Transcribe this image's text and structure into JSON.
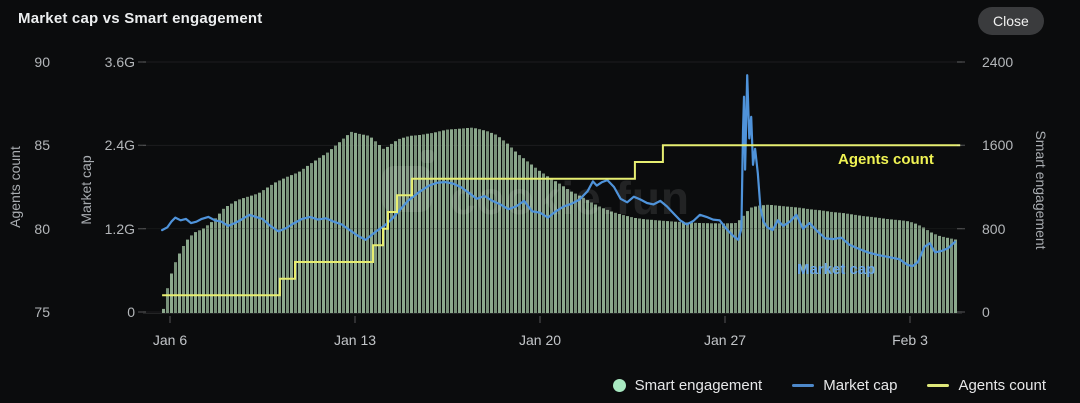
{
  "header": {
    "title": "Market cap vs Smart engagement",
    "close_label": "Close"
  },
  "watermark": {
    "text": "cookie.fun"
  },
  "annotations": {
    "agents": {
      "text": "Agents count",
      "color": "#f0f353"
    },
    "market_cap": {
      "text": "Market cap",
      "color": "#69a6e5"
    }
  },
  "legend": {
    "items": [
      {
        "label": "Smart engagement",
        "marker": "dot",
        "color": "#a8e9c1"
      },
      {
        "label": "Market cap",
        "marker": "line",
        "color": "#4d88c9"
      },
      {
        "label": "Agents count",
        "marker": "line",
        "color": "#dfe87a"
      }
    ]
  },
  "axes": {
    "left_agents": {
      "title": "Agents count",
      "ticks": [
        "90",
        "85",
        "80",
        "75"
      ],
      "range": [
        75,
        90
      ]
    },
    "left_market_cap": {
      "title": "Market cap",
      "ticks": [
        "3.6G",
        "2.4G",
        "1.2G",
        "0"
      ],
      "range_G": [
        0,
        3.6
      ]
    },
    "right_smart_engagement": {
      "title": "Smart engagement",
      "ticks": [
        "2400",
        "1600",
        "800",
        "0"
      ],
      "range": [
        0,
        2400
      ]
    },
    "x": {
      "tick_labels": [
        "Jan 6",
        "Jan 13",
        "Jan 20",
        "Jan 27",
        "Feb 3"
      ],
      "tick_values": [
        6,
        13,
        20,
        27,
        34
      ]
    }
  },
  "chart_data": {
    "type": "combo",
    "title": "Market cap vs Smart engagement",
    "x_unit": "day (Jan 6 = 6, Feb 3 = 34)",
    "x_range": [
      5.7,
      35.9
    ],
    "grid": "horizontal",
    "legend_position": "bottom-right",
    "series": [
      {
        "name": "Smart engagement",
        "type": "area-bars",
        "axis": "smart_engagement",
        "color": "#8ca98d",
        "axis_range": [
          0,
          2400
        ],
        "points": [
          [
            5.7,
            30
          ],
          [
            5.8,
            180
          ],
          [
            5.95,
            330
          ],
          [
            6.1,
            450
          ],
          [
            6.3,
            560
          ],
          [
            6.55,
            680
          ],
          [
            6.85,
            760
          ],
          [
            7.2,
            800
          ],
          [
            7.6,
            880
          ],
          [
            8.0,
            1000
          ],
          [
            8.5,
            1075
          ],
          [
            9.3,
            1140
          ],
          [
            9.9,
            1240
          ],
          [
            10.4,
            1300
          ],
          [
            10.8,
            1340
          ],
          [
            11.3,
            1430
          ],
          [
            11.9,
            1530
          ],
          [
            12.4,
            1640
          ],
          [
            12.8,
            1730
          ],
          [
            13.1,
            1710
          ],
          [
            13.5,
            1690
          ],
          [
            13.8,
            1620
          ],
          [
            14.05,
            1560
          ],
          [
            14.3,
            1610
          ],
          [
            14.6,
            1660
          ],
          [
            15.0,
            1690
          ],
          [
            15.4,
            1700
          ],
          [
            15.9,
            1720
          ],
          [
            16.4,
            1750
          ],
          [
            16.9,
            1760
          ],
          [
            17.4,
            1770
          ],
          [
            17.9,
            1740
          ],
          [
            18.3,
            1700
          ],
          [
            18.7,
            1620
          ],
          [
            19.1,
            1520
          ],
          [
            19.5,
            1440
          ],
          [
            19.9,
            1360
          ],
          [
            20.3,
            1290
          ],
          [
            20.7,
            1230
          ],
          [
            21.1,
            1160
          ],
          [
            21.5,
            1110
          ],
          [
            21.9,
            1050
          ],
          [
            22.3,
            1000
          ],
          [
            22.7,
            960
          ],
          [
            23.1,
            930
          ],
          [
            23.5,
            905
          ],
          [
            23.9,
            890
          ],
          [
            24.4,
            880
          ],
          [
            24.9,
            870
          ],
          [
            25.4,
            862
          ],
          [
            25.9,
            855
          ],
          [
            26.4,
            852
          ],
          [
            26.9,
            850
          ],
          [
            27.4,
            855
          ],
          [
            27.7,
            940
          ],
          [
            27.9,
            1000
          ],
          [
            28.2,
            1020
          ],
          [
            28.6,
            1030
          ],
          [
            29.0,
            1020
          ],
          [
            29.4,
            1010
          ],
          [
            29.8,
            1000
          ],
          [
            30.2,
            985
          ],
          [
            30.6,
            975
          ],
          [
            31.0,
            960
          ],
          [
            31.4,
            950
          ],
          [
            31.8,
            935
          ],
          [
            32.2,
            920
          ],
          [
            32.6,
            910
          ],
          [
            33.0,
            895
          ],
          [
            33.4,
            885
          ],
          [
            33.8,
            875
          ],
          [
            34.1,
            855
          ],
          [
            34.4,
            820
          ],
          [
            34.7,
            770
          ],
          [
            35.0,
            735
          ],
          [
            35.3,
            715
          ],
          [
            35.6,
            700
          ],
          [
            35.78,
            690
          ]
        ]
      },
      {
        "name": "Market cap",
        "type": "line",
        "axis": "market_cap_G",
        "color": "#4f93da",
        "axis_range_G": [
          0,
          3.6
        ],
        "points": [
          [
            5.7,
            1.18
          ],
          [
            5.9,
            1.22
          ],
          [
            6.05,
            1.3
          ],
          [
            6.2,
            1.36
          ],
          [
            6.4,
            1.32
          ],
          [
            6.6,
            1.34
          ],
          [
            6.8,
            1.28
          ],
          [
            7.0,
            1.3
          ],
          [
            7.2,
            1.34
          ],
          [
            7.45,
            1.37
          ],
          [
            7.7,
            1.32
          ],
          [
            7.95,
            1.3
          ],
          [
            8.2,
            1.24
          ],
          [
            8.45,
            1.28
          ],
          [
            8.7,
            1.33
          ],
          [
            9.0,
            1.4
          ],
          [
            9.25,
            1.37
          ],
          [
            9.5,
            1.34
          ],
          [
            9.8,
            1.24
          ],
          [
            10.1,
            1.16
          ],
          [
            10.4,
            1.21
          ],
          [
            10.7,
            1.28
          ],
          [
            11.0,
            1.34
          ],
          [
            11.3,
            1.37
          ],
          [
            11.6,
            1.33
          ],
          [
            11.9,
            1.35
          ],
          [
            12.2,
            1.3
          ],
          [
            12.5,
            1.26
          ],
          [
            12.8,
            1.18
          ],
          [
            13.1,
            1.1
          ],
          [
            13.4,
            1.04
          ],
          [
            13.6,
            1.1
          ],
          [
            13.8,
            1.16
          ],
          [
            14.1,
            1.24
          ],
          [
            14.4,
            1.34
          ],
          [
            14.7,
            1.47
          ],
          [
            15.0,
            1.6
          ],
          [
            15.4,
            1.72
          ],
          [
            15.8,
            1.82
          ],
          [
            16.1,
            1.86
          ],
          [
            16.4,
            1.87
          ],
          [
            16.7,
            1.85
          ],
          [
            17.0,
            1.8
          ],
          [
            17.3,
            1.72
          ],
          [
            17.6,
            1.63
          ],
          [
            17.9,
            1.67
          ],
          [
            18.2,
            1.6
          ],
          [
            18.5,
            1.55
          ],
          [
            18.8,
            1.48
          ],
          [
            19.1,
            1.52
          ],
          [
            19.4,
            1.6
          ],
          [
            19.7,
            1.45
          ],
          [
            20.0,
            1.43
          ],
          [
            20.3,
            1.36
          ],
          [
            20.6,
            1.45
          ],
          [
            20.9,
            1.52
          ],
          [
            21.2,
            1.56
          ],
          [
            21.5,
            1.62
          ],
          [
            21.8,
            1.74
          ],
          [
            22.0,
            1.88
          ],
          [
            22.15,
            1.82
          ],
          [
            22.35,
            1.87
          ],
          [
            22.55,
            1.9
          ],
          [
            22.8,
            1.8
          ],
          [
            23.05,
            1.63
          ],
          [
            23.3,
            1.58
          ],
          [
            23.55,
            1.66
          ],
          [
            23.8,
            1.62
          ],
          [
            24.05,
            1.57
          ],
          [
            24.3,
            1.55
          ],
          [
            24.55,
            1.6
          ],
          [
            24.8,
            1.52
          ],
          [
            25.05,
            1.42
          ],
          [
            25.3,
            1.32
          ],
          [
            25.55,
            1.26
          ],
          [
            25.8,
            1.31
          ],
          [
            26.05,
            1.4
          ],
          [
            26.3,
            1.37
          ],
          [
            26.55,
            1.33
          ],
          [
            26.8,
            1.32
          ],
          [
            27.05,
            1.2
          ],
          [
            27.3,
            1.1
          ],
          [
            27.5,
            1.04
          ],
          [
            27.62,
            1.2
          ],
          [
            27.68,
            2.6
          ],
          [
            27.72,
            3.1
          ],
          [
            27.76,
            2.05
          ],
          [
            27.84,
            3.41
          ],
          [
            27.92,
            2.5
          ],
          [
            27.99,
            2.81
          ],
          [
            28.06,
            2.12
          ],
          [
            28.14,
            2.35
          ],
          [
            28.24,
            2.0
          ],
          [
            28.34,
            1.5
          ],
          [
            28.46,
            1.3
          ],
          [
            28.6,
            1.22
          ],
          [
            28.8,
            1.18
          ],
          [
            29.0,
            1.32
          ],
          [
            29.2,
            1.24
          ],
          [
            29.45,
            1.3
          ],
          [
            29.7,
            1.4
          ],
          [
            29.95,
            1.2
          ],
          [
            30.2,
            1.28
          ],
          [
            30.5,
            1.16
          ],
          [
            30.8,
            1.06
          ],
          [
            31.1,
            1.05
          ],
          [
            31.4,
            1.07
          ],
          [
            31.7,
            0.97
          ],
          [
            32.0,
            0.92
          ],
          [
            32.4,
            0.86
          ],
          [
            32.8,
            0.82
          ],
          [
            33.2,
            0.79
          ],
          [
            33.6,
            0.76
          ],
          [
            33.9,
            0.68
          ],
          [
            34.1,
            0.66
          ],
          [
            34.3,
            0.72
          ],
          [
            34.55,
            0.94
          ],
          [
            34.75,
            0.99
          ],
          [
            34.95,
            0.86
          ],
          [
            35.2,
            0.88
          ],
          [
            35.45,
            0.92
          ],
          [
            35.7,
            1.01
          ]
        ]
      },
      {
        "name": "Agents count",
        "type": "step-line",
        "axis": "agents",
        "color": "#e7ee71",
        "axis_range": [
          75,
          90
        ],
        "step_changes": [
          [
            5.7,
            76
          ],
          [
            10.16,
            77
          ],
          [
            10.73,
            78
          ],
          [
            13.68,
            79
          ],
          [
            14.06,
            80
          ],
          [
            14.25,
            81
          ],
          [
            14.59,
            82
          ],
          [
            15.16,
            83
          ],
          [
            23.59,
            84
          ],
          [
            24.65,
            85
          ]
        ],
        "end_x": 35.9
      }
    ]
  }
}
